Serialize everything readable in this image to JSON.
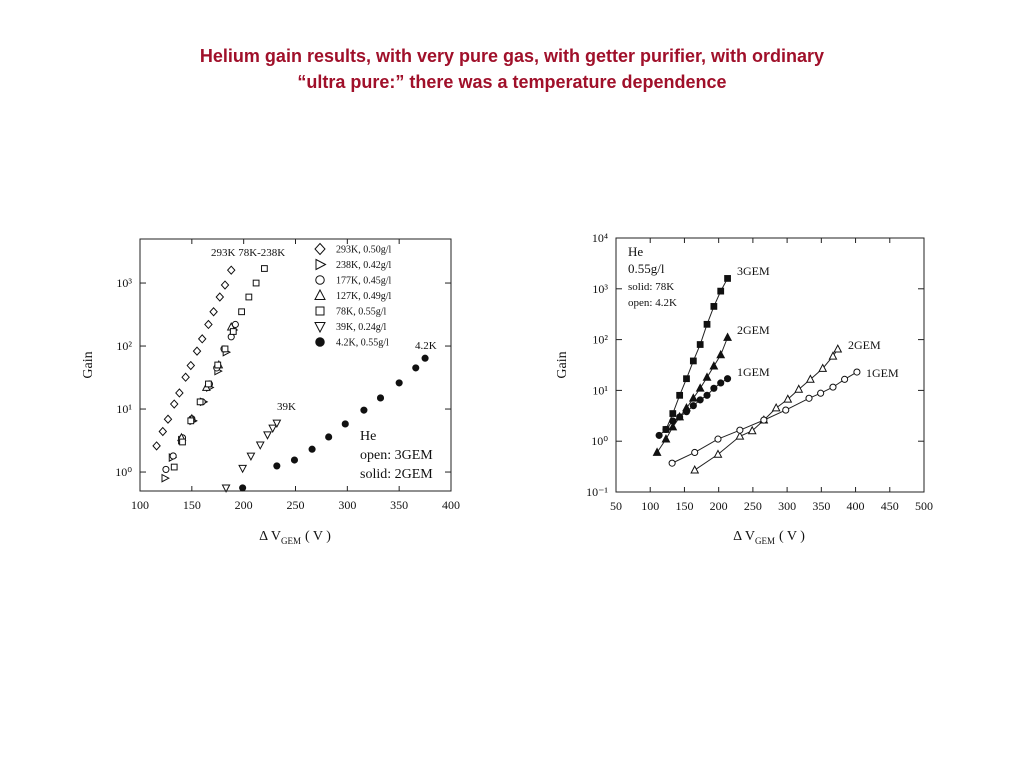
{
  "title": [
    "Helium gain results, with very pure gas, with getter purifier, with ordinary",
    "“ultra pure:” there was a temperature dependence"
  ],
  "chart_data": [
    {
      "type": "scatter",
      "logy": true,
      "legend": "upper right",
      "ylabel": "Gain",
      "xlabel": "Δ V",
      "xlabel_sub": "GEM",
      "xlabel_unit": "( V )",
      "xlim": [
        100,
        400
      ],
      "xticks": [
        100,
        150,
        200,
        250,
        300,
        350,
        400
      ],
      "ylim": [
        0.5,
        5000
      ],
      "yticks": [
        {
          "value": 1,
          "label": "10⁰"
        },
        {
          "value": 10,
          "label": "10¹"
        },
        {
          "value": 100,
          "label": "10²"
        },
        {
          "value": 1000,
          "label": "10³"
        }
      ],
      "annotations": [
        "293K 78K-238K",
        "39K",
        "4.2K",
        "He",
        "open: 3GEM",
        "solid: 2GEM"
      ],
      "series": [
        {
          "name": "293K, 0.50g/l",
          "marker": "diamond",
          "filled": false,
          "x": [
            116,
            122,
            127,
            133,
            138,
            144,
            149,
            155,
            160,
            166,
            171,
            177,
            182,
            188
          ],
          "values": [
            2.6,
            4.4,
            6.9,
            12,
            18,
            32,
            49,
            83,
            130,
            220,
            350,
            600,
            930,
            1600
          ]
        },
        {
          "name": "238K, 0.42g/l",
          "marker": "triangle-right",
          "filled": false,
          "x": [
            124,
            131,
            140,
            151,
            161,
            167,
            175,
            183,
            190
          ],
          "values": [
            0.8,
            1.7,
            3.2,
            6.5,
            13,
            22,
            40,
            80,
            180
          ]
        },
        {
          "name": "177K, 0.45g/l",
          "marker": "circle",
          "filled": false,
          "x": [
            125,
            132,
            141,
            150,
            160,
            167,
            174,
            181,
            188,
            192
          ],
          "values": [
            1.1,
            1.8,
            3.5,
            7,
            13,
            25,
            45,
            90,
            140,
            220
          ]
        },
        {
          "name": "127K, 0.49g/l",
          "marker": "triangle-up",
          "filled": false,
          "x": [
            140,
            150,
            164,
            176,
            188
          ],
          "values": [
            3.5,
            7,
            22,
            50,
            200
          ]
        },
        {
          "name": "78K, 0.55g/l",
          "marker": "square",
          "filled": false,
          "x": [
            133,
            141,
            149,
            158,
            166,
            175,
            182,
            190,
            198,
            205,
            212,
            220
          ],
          "values": [
            1.2,
            3,
            6.5,
            13,
            25,
            50,
            90,
            170,
            350,
            600,
            1000,
            1700
          ]
        },
        {
          "name": "39K, 0.24g/l",
          "marker": "triangle-down",
          "filled": false,
          "x": [
            183,
            199,
            207,
            216,
            223,
            228,
            232
          ],
          "values": [
            0.56,
            1.15,
            1.8,
            2.7,
            3.9,
            5,
            6
          ]
        },
        {
          "name": "4.2K, 0.55g/l",
          "marker": "circle",
          "filled": true,
          "x": [
            199,
            232,
            249,
            266,
            282,
            298,
            316,
            332,
            350,
            366,
            375
          ],
          "values": [
            0.56,
            1.25,
            1.55,
            2.3,
            3.6,
            5.8,
            9.6,
            15,
            26,
            45,
            64
          ]
        }
      ]
    },
    {
      "type": "scatter",
      "logy": true,
      "lines": true,
      "ylabel": "Gain",
      "xlabel": "Δ V",
      "xlabel_sub": "GEM",
      "xlabel_unit": "( V )",
      "xlim": [
        50,
        500
      ],
      "xticks": [
        50,
        100,
        150,
        200,
        250,
        300,
        350,
        400,
        450,
        500
      ],
      "ylim": [
        0.1,
        10000
      ],
      "yticks": [
        {
          "value": 0.1,
          "label": "10⁻¹"
        },
        {
          "value": 1,
          "label": "10⁰"
        },
        {
          "value": 10,
          "label": "10¹"
        },
        {
          "value": 100,
          "label": "10²"
        },
        {
          "value": 1000,
          "label": "10³"
        },
        {
          "value": 10000,
          "label": "10⁴"
        }
      ],
      "annotations": [
        "He",
        "0.55g/l",
        "solid: 78K",
        "open: 4.2K"
      ],
      "series": [
        {
          "name": "3GEM",
          "marker": "square",
          "filled": true,
          "x": [
            123,
            133,
            143,
            153,
            163,
            173,
            183,
            193,
            203,
            213
          ],
          "values": [
            1.7,
            3.5,
            8,
            17,
            38,
            80,
            200,
            450,
            900,
            1600
          ]
        },
        {
          "name": "2GEM",
          "marker": "triangle-up",
          "filled": true,
          "x": [
            110,
            123,
            133,
            143,
            153,
            163,
            173,
            183,
            193,
            203,
            213
          ],
          "values": [
            0.6,
            1.1,
            1.9,
            3,
            4.5,
            7,
            11,
            18,
            30,
            50,
            110
          ]
        },
        {
          "name": "1GEM",
          "marker": "circle",
          "filled": true,
          "x": [
            113,
            123,
            133,
            143,
            153,
            163,
            173,
            183,
            193,
            203,
            213
          ],
          "values": [
            1.3,
            1.7,
            2.5,
            3,
            3.8,
            5,
            6.5,
            8,
            11,
            14,
            17
          ]
        },
        {
          "name": "2GEM",
          "marker": "triangle-up",
          "filled": false,
          "x": [
            165,
            199,
            231,
            249,
            266,
            284,
            301,
            317,
            334,
            352,
            367,
            374
          ],
          "values": [
            0.27,
            0.55,
            1.25,
            1.6,
            2.6,
            4.5,
            6.7,
            10.5,
            16.5,
            27,
            47,
            65
          ]
        },
        {
          "name": "1GEM",
          "marker": "circle",
          "filled": false,
          "x": [
            132,
            165,
            199,
            231,
            266,
            298,
            332,
            349,
            367,
            384,
            402
          ],
          "values": [
            0.37,
            0.6,
            1.1,
            1.65,
            2.6,
            4.1,
            7,
            8.8,
            11.6,
            16.5,
            23
          ]
        }
      ]
    }
  ]
}
